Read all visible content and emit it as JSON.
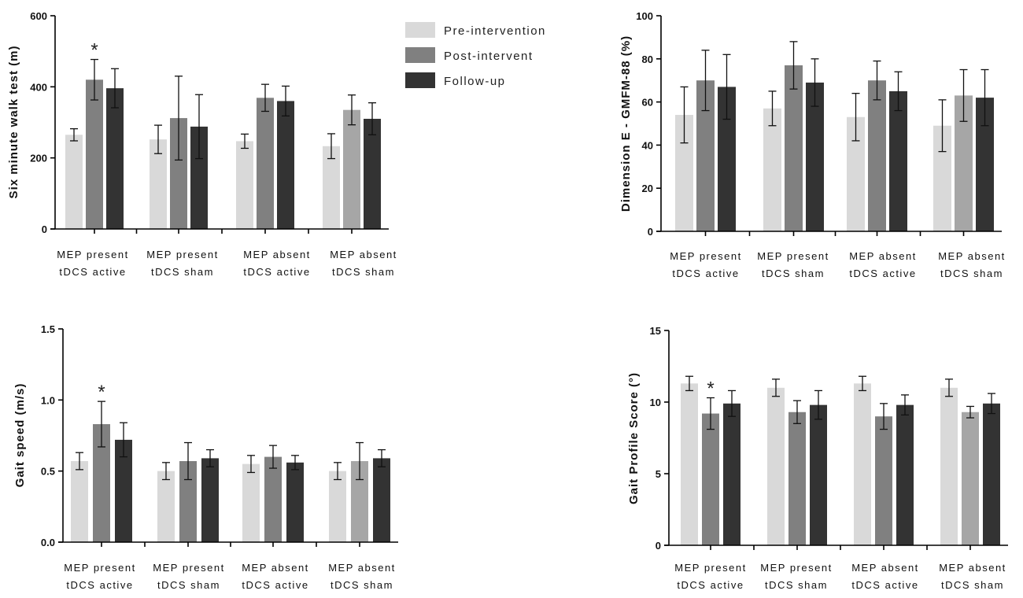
{
  "legend": [
    {
      "label": "Pre-intervention",
      "color": "#d9d9d9"
    },
    {
      "label": "Post-intervent",
      "color": "#808080"
    },
    {
      "label": "Follow-up",
      "color": "#333333"
    }
  ],
  "chart_data": [
    {
      "type": "bar",
      "title": "",
      "ylabel": "Six minute walk test (m)",
      "ylim": [
        0,
        600
      ],
      "yticks": [
        "0",
        "200",
        "400",
        "600"
      ],
      "ytick_values": [
        0,
        200,
        400,
        600
      ],
      "categories": [
        [
          "MEP present",
          "tDCS active"
        ],
        [
          "MEP present",
          "tDCS sham"
        ],
        [
          "MEP absent",
          "tDCS active"
        ],
        [
          "MEP absent",
          "tDCS sham"
        ]
      ],
      "series": [
        {
          "name": "Pre-intervention",
          "colors": [
            "#d9d9d9",
            "#d9d9d9",
            "#d9d9d9",
            "#d9d9d9"
          ],
          "values": [
            265,
            252,
            247,
            233
          ],
          "errors": [
            17,
            40,
            20,
            35
          ]
        },
        {
          "name": "Post-intervent",
          "colors": [
            "#808080",
            "#808080",
            "#808080",
            "#a6a6a6"
          ],
          "values": [
            420,
            312,
            369,
            335
          ],
          "errors": [
            57,
            118,
            38,
            42
          ]
        },
        {
          "name": "Follow-up",
          "colors": [
            "#333333",
            "#333333",
            "#333333",
            "#333333"
          ],
          "values": [
            396,
            288,
            360,
            310
          ],
          "errors": [
            55,
            90,
            42,
            45
          ]
        }
      ],
      "annotations": [
        {
          "text": "*",
          "category": 0,
          "series": 1
        }
      ]
    },
    {
      "type": "bar",
      "title": "",
      "ylabel": "Dimension E - GMFM-88 (%)",
      "ylim": [
        0,
        100
      ],
      "yticks": [
        "0",
        "20",
        "40",
        "60",
        "80",
        "100"
      ],
      "ytick_values": [
        0,
        20,
        40,
        60,
        80,
        100
      ],
      "categories": [
        [
          "MEP present",
          "tDCS active"
        ],
        [
          "MEP present",
          "tDCS sham"
        ],
        [
          "MEP absent",
          "tDCS active"
        ],
        [
          "MEP absent",
          "tDCS sham"
        ]
      ],
      "series": [
        {
          "name": "Pre-intervention",
          "colors": [
            "#d9d9d9",
            "#d9d9d9",
            "#d9d9d9",
            "#d9d9d9"
          ],
          "values": [
            54,
            57,
            53,
            49
          ],
          "errors": [
            13,
            8,
            11,
            12
          ]
        },
        {
          "name": "Post-intervent",
          "colors": [
            "#808080",
            "#808080",
            "#808080",
            "#a6a6a6"
          ],
          "values": [
            70,
            77,
            70,
            63
          ],
          "errors": [
            14,
            11,
            9,
            12
          ]
        },
        {
          "name": "Follow-up",
          "colors": [
            "#333333",
            "#333333",
            "#333333",
            "#333333"
          ],
          "values": [
            67,
            69,
            65,
            62
          ],
          "errors": [
            15,
            11,
            9,
            13
          ]
        }
      ],
      "annotations": []
    },
    {
      "type": "bar",
      "title": "",
      "ylabel": "Gait speed (m/s)",
      "ylim": [
        0,
        1.5
      ],
      "yticks": [
        "0.0",
        "0.5",
        "1.0",
        "1.5"
      ],
      "ytick_values": [
        0,
        0.5,
        1.0,
        1.5
      ],
      "categories": [
        [
          "MEP present",
          "tDCS active"
        ],
        [
          "MEP present",
          "tDCS sham"
        ],
        [
          "MEP absent",
          "tDCS active"
        ],
        [
          "MEP absent",
          "tDCS sham"
        ]
      ],
      "series": [
        {
          "name": "Pre-intervention",
          "colors": [
            "#d9d9d9",
            "#d9d9d9",
            "#d9d9d9",
            "#d9d9d9"
          ],
          "values": [
            0.57,
            0.5,
            0.55,
            0.5
          ],
          "errors": [
            0.06,
            0.06,
            0.06,
            0.06
          ]
        },
        {
          "name": "Post-intervent",
          "colors": [
            "#808080",
            "#808080",
            "#808080",
            "#a6a6a6"
          ],
          "values": [
            0.83,
            0.57,
            0.6,
            0.57
          ],
          "errors": [
            0.16,
            0.13,
            0.08,
            0.13
          ]
        },
        {
          "name": "Follow-up",
          "colors": [
            "#333333",
            "#333333",
            "#333333",
            "#333333"
          ],
          "values": [
            0.72,
            0.59,
            0.56,
            0.59
          ],
          "errors": [
            0.12,
            0.06,
            0.05,
            0.06
          ]
        }
      ],
      "annotations": [
        {
          "text": "*",
          "category": 0,
          "series": 1
        }
      ]
    },
    {
      "type": "bar",
      "title": "",
      "ylabel": "Gait Profile Score (°)",
      "ylim": [
        0,
        15
      ],
      "yticks": [
        "0",
        "5",
        "10",
        "15"
      ],
      "ytick_values": [
        0,
        5,
        10,
        15
      ],
      "categories": [
        [
          "MEP present",
          "tDCS active"
        ],
        [
          "MEP present",
          "tDCS sham"
        ],
        [
          "MEP absent",
          "tDCS active"
        ],
        [
          "MEP absent",
          "tDCS sham"
        ]
      ],
      "series": [
        {
          "name": "Pre-intervention",
          "colors": [
            "#d9d9d9",
            "#d9d9d9",
            "#d9d9d9",
            "#d9d9d9"
          ],
          "values": [
            11.3,
            11.0,
            11.3,
            11.0
          ],
          "errors": [
            0.5,
            0.6,
            0.5,
            0.6
          ]
        },
        {
          "name": "Post-intervent",
          "colors": [
            "#808080",
            "#808080",
            "#808080",
            "#a6a6a6"
          ],
          "values": [
            9.2,
            9.3,
            9.0,
            9.3
          ],
          "errors": [
            1.1,
            0.8,
            0.9,
            0.4
          ]
        },
        {
          "name": "Follow-up",
          "colors": [
            "#333333",
            "#333333",
            "#333333",
            "#333333"
          ],
          "values": [
            9.9,
            9.8,
            9.8,
            9.9
          ],
          "errors": [
            0.9,
            1.0,
            0.7,
            0.7
          ]
        }
      ],
      "annotations": [
        {
          "text": "*",
          "category": 0,
          "series": 1
        }
      ]
    }
  ]
}
